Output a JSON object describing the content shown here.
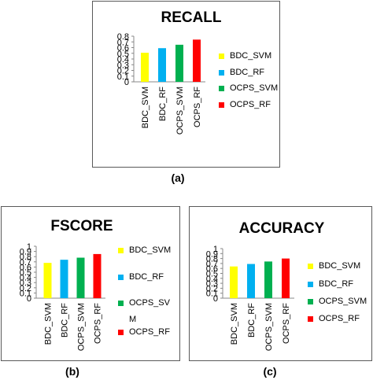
{
  "captions": [
    "(a)",
    "(b)",
    "(c)"
  ],
  "colors": [
    "#FFFF00",
    "#00B0F0",
    "#00B050",
    "#FF0000"
  ],
  "chart_data": [
    {
      "type": "bar",
      "title": "RECALL",
      "categories": [
        "BDC_SVM",
        "BDC_RF",
        "OCPS_SVM",
        "OCPS_RF"
      ],
      "values": [
        0.51,
        0.59,
        0.65,
        0.74
      ],
      "ylim": [
        0,
        0.8
      ],
      "yticks": [
        "0",
        "0.1",
        "0.2",
        "0.3",
        "0.4",
        "0.5",
        "0.6",
        "0.7",
        "0.8"
      ],
      "legend": [
        "BDC_SVM",
        "BDC_RF",
        "OCPS_SVM",
        "OCPS_RF"
      ],
      "legend_position": "right",
      "grid": false
    },
    {
      "type": "bar",
      "title": "FSCORE",
      "categories": [
        "BDC_SVM",
        "BDC_RF",
        "OCPS_SVM",
        "OCPS_RF"
      ],
      "values": [
        0.68,
        0.74,
        0.78,
        0.85
      ],
      "ylim": [
        0,
        1
      ],
      "yticks": [
        "0",
        "0.1",
        "0.2",
        "0.3",
        "0.4",
        "0.5",
        "0.6",
        "0.7",
        "0.8",
        "0.9",
        "1"
      ],
      "legend": [
        "BDC_SVM",
        "BDC_RF",
        "OCPS_SV",
        "OCPS_RF"
      ],
      "legend_extra": "M",
      "legend_position": "right",
      "grid": false
    },
    {
      "type": "bar",
      "title": "ACCURACY",
      "categories": [
        "BDC_SVM",
        "BDC_RF",
        "OCPS_SVM",
        "OCPS_RF"
      ],
      "values": [
        0.64,
        0.69,
        0.74,
        0.8
      ],
      "ylim": [
        0,
        1
      ],
      "yticks": [
        "0",
        "0.1",
        "0.2",
        "0.3",
        "0.4",
        "0.5",
        "0.6",
        "0.7",
        "0.8",
        "0.9",
        "1"
      ],
      "legend": [
        "BDC_SVM",
        "BDC_RF",
        "OCPS_SVM",
        "OCPS_RF"
      ],
      "legend_position": "right",
      "grid": false
    }
  ]
}
